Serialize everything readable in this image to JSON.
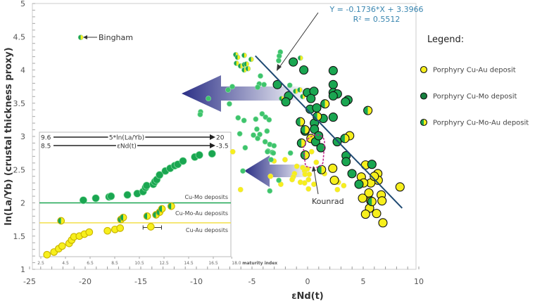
{
  "colors": {
    "cu_au": "#f7ef1c",
    "cu_mo": "#1aa651",
    "cu_mo_dark": "#17803f",
    "small_green": "#3ec46c",
    "line": "#1f4a73",
    "equation": "#3a86b0",
    "kounrad_outline": "#c0288a",
    "arrow": "#2b2f86"
  },
  "chart_data": {
    "type": "scatter",
    "xlabel": "εNd(t)",
    "ylabel": "ln(La/Yb) (crustal thickness proxy)",
    "xlim": [
      -25,
      10
    ],
    "ylim": [
      1,
      5
    ],
    "xticks": [
      -25,
      -20,
      -15,
      -10,
      -5,
      0,
      5,
      10
    ],
    "yticks": [
      1,
      1.5,
      2,
      2.5,
      3,
      3.5,
      4,
      4.5,
      5
    ],
    "grid": false,
    "legend_placement": "right",
    "legend": {
      "title": "Legend:",
      "entries": [
        "Porphyry Cu-Au deposit",
        "Porphyry Cu-Mo deposit",
        "Porphyry Cu-Mo-Au deposit"
      ]
    },
    "regression": {
      "equation": "Y = -0.1736*X + 3.3966",
      "r2": "R² = 0.5512",
      "slope": -0.1736,
      "intercept": 3.3966,
      "xrange": [
        -4.7,
        8.5
      ]
    },
    "annotations": {
      "bingham": "Bingham",
      "kounrad": "Kounrad"
    },
    "series": [
      {
        "name": "Porphyry Cu-Au deposit",
        "type": "cu_au",
        "size": "large",
        "points": [
          [
            3.78,
            3.01
          ],
          [
            0.3,
            2.97
          ],
          [
            2.26,
            2.52
          ],
          [
            2.41,
            2.34
          ],
          [
            5.21,
            2.57
          ],
          [
            4.83,
            2.39
          ],
          [
            6.31,
            2.44
          ],
          [
            6.35,
            2.34
          ],
          [
            5.68,
            2.3
          ],
          [
            5.04,
            2.3
          ],
          [
            6.0,
            2.4
          ],
          [
            8.31,
            2.24
          ],
          [
            5.51,
            2.15
          ],
          [
            4.94,
            2.07
          ],
          [
            6.62,
            2.12
          ],
          [
            6.69,
            2.03
          ],
          [
            5.68,
            2.03
          ],
          [
            5.57,
            1.92
          ],
          [
            5.21,
            1.83
          ],
          [
            6.2,
            1.84
          ],
          [
            6.77,
            1.7
          ]
        ]
      },
      {
        "name": "Porphyry Cu-Mo deposit",
        "type": "cu_mo",
        "size": "large",
        "points": [
          [
            -1.29,
            4.12
          ],
          [
            -0.34,
            4.0
          ],
          [
            2.3,
            3.99
          ],
          [
            -2.72,
            3.78
          ],
          [
            2.3,
            3.78
          ],
          [
            -1.71,
            3.61
          ],
          [
            -1.96,
            3.52
          ],
          [
            -0.02,
            3.66
          ],
          [
            0.57,
            3.68
          ],
          [
            0.3,
            3.57
          ],
          [
            2.3,
            3.66
          ],
          [
            2.68,
            3.64
          ],
          [
            2.3,
            3.61
          ],
          [
            3.63,
            3.55
          ],
          [
            3.4,
            3.52
          ],
          [
            0.23,
            3.41
          ],
          [
            0.82,
            3.43
          ],
          [
            1.41,
            3.27
          ],
          [
            2.3,
            3.29
          ],
          [
            0.61,
            3.2
          ],
          [
            0.61,
            3.11
          ],
          [
            -0.23,
            3.08
          ],
          [
            0.72,
            2.92
          ],
          [
            0.99,
            3.01
          ],
          [
            1.2,
            2.83
          ],
          [
            2.66,
            2.92
          ],
          [
            3.46,
            2.71
          ],
          [
            3.46,
            2.62
          ],
          [
            3.99,
            2.44
          ],
          [
            4.62,
            2.28
          ],
          [
            5.78,
            2.58
          ]
        ]
      },
      {
        "name": "Porphyry Cu-Mo-Au deposit",
        "type": "cu_mo_au",
        "size": "large",
        "points": [
          [
            1.56,
            3.49
          ],
          [
            0.87,
            3.3
          ],
          [
            -0.65,
            3.22
          ],
          [
            -0.23,
            3.1
          ],
          [
            -0.55,
            2.9
          ],
          [
            -0.23,
            2.72
          ],
          [
            3.35,
            2.97
          ],
          [
            1.25,
            2.5
          ],
          [
            5.42,
            3.39
          ],
          [
            5.78,
            2.02
          ]
        ]
      },
      {
        "type": "cu_au",
        "size": "small",
        "points": [
          [
            -6.73,
            2.77
          ],
          [
            -2.03,
            2.65
          ],
          [
            -3.02,
            2.63
          ],
          [
            -0.97,
            2.55
          ],
          [
            -0.44,
            2.53
          ],
          [
            -0.02,
            2.51
          ],
          [
            -0.27,
            2.48
          ],
          [
            0.36,
            2.77
          ],
          [
            0.78,
            2.61
          ],
          [
            -1.18,
            2.44
          ],
          [
            -1.29,
            2.39
          ],
          [
            -0.23,
            2.43
          ],
          [
            0.15,
            2.43
          ],
          [
            -1.39,
            2.35
          ],
          [
            -0.65,
            2.31
          ],
          [
            -0.27,
            2.3
          ],
          [
            0.08,
            2.35
          ],
          [
            0.57,
            2.28
          ],
          [
            0.08,
            2.21
          ],
          [
            -3.34,
            2.4
          ],
          [
            -2.41,
            2.28
          ],
          [
            -6.03,
            2.2
          ],
          [
            1.52,
            2.44
          ],
          [
            2.77,
            2.31
          ],
          [
            2.68,
            2.2
          ],
          [
            3.25,
            2.26
          ]
        ]
      },
      {
        "type": "cu_mo",
        "size": "small",
        "points": [
          [
            -2.45,
            4.27
          ],
          [
            -2.55,
            4.21
          ],
          [
            -2.6,
            4.14
          ],
          [
            -4.24,
            3.91
          ],
          [
            -4.35,
            3.79
          ],
          [
            -3.92,
            3.78
          ],
          [
            -4.49,
            3.74
          ],
          [
            -6.77,
            3.75
          ],
          [
            -7.15,
            3.7
          ],
          [
            -8.92,
            3.57
          ],
          [
            -7.03,
            3.49
          ],
          [
            -9.62,
            3.37
          ],
          [
            -9.66,
            3.33
          ],
          [
            -6.25,
            3.28
          ],
          [
            -5.72,
            3.24
          ],
          [
            -4.66,
            3.26
          ],
          [
            -4.09,
            3.34
          ],
          [
            -3.78,
            3.29
          ],
          [
            -3.46,
            3.25
          ],
          [
            -1.6,
            3.77
          ],
          [
            -4.56,
            3.11
          ],
          [
            -6.1,
            3.04
          ],
          [
            -4.87,
            3.02
          ],
          [
            -4.3,
            3.03
          ],
          [
            -3.65,
            3.08
          ],
          [
            -4.49,
            2.97
          ],
          [
            -3.82,
            2.92
          ],
          [
            -3.4,
            2.88
          ],
          [
            -3.02,
            2.86
          ],
          [
            -3.56,
            2.78
          ],
          [
            -3.18,
            2.76
          ],
          [
            -5.61,
            2.83
          ],
          [
            -1.54,
            2.75
          ],
          [
            -3.61,
            2.77
          ],
          [
            -3.08,
            2.75
          ],
          [
            -3.29,
            2.65
          ],
          [
            -5.82,
            2.48
          ],
          [
            -2.59,
            2.34
          ],
          [
            -3.4,
            2.18
          ]
        ]
      },
      {
        "type": "cu_mo_au",
        "size": "small",
        "points": [
          [
            -20.4,
            4.49
          ],
          [
            -6.46,
            4.23
          ],
          [
            -5.7,
            4.22
          ],
          [
            -6.3,
            4.19
          ],
          [
            -5.08,
            4.16
          ],
          [
            -6.4,
            4.1
          ],
          [
            -6.03,
            4.06
          ],
          [
            -5.68,
            4.08
          ],
          [
            -5.5,
            4.09
          ],
          [
            -5.7,
            4.0
          ],
          [
            -5.36,
            4.02
          ],
          [
            -0.65,
            4.18
          ],
          [
            -1.08,
            3.68
          ],
          [
            -0.7,
            3.7
          ],
          [
            -0.44,
            3.6
          ],
          [
            -2.34,
            3.57
          ]
        ]
      }
    ],
    "inset": {
      "xlabel": "maturity index",
      "xticks": [
        "2.5",
        "4.5",
        "6.5",
        "8.5",
        "10.5",
        "12.5",
        "14.5",
        "16.5",
        "18.0"
      ],
      "xlim": [
        2.5,
        18.0
      ],
      "scale_rows": [
        {
          "from": "9.6",
          "label": "5*ln(La/Yb)",
          "to": "20"
        },
        {
          "from": "8.5",
          "label": "εNd(t)",
          "to": "-3.5"
        }
      ],
      "thresholds": [
        {
          "label": "Cu-Mo deposits",
          "y": 2.0,
          "color": "#1aa651"
        },
        {
          "label": "Cu-Au deposits",
          "y": 1.7,
          "color": "#f2e04a"
        }
      ],
      "middle_label": "Cu-Mo-Au deposits",
      "series": [
        {
          "type": "cu_mo",
          "points": [
            [
              5.95,
              2.04
            ],
            [
              6.96,
              2.07
            ],
            [
              8.04,
              2.09
            ],
            [
              8.2,
              2.1
            ],
            [
              9.53,
              2.12
            ],
            [
              10.33,
              2.14
            ],
            [
              10.8,
              2.17
            ],
            [
              11.0,
              2.23
            ],
            [
              11.09,
              2.26
            ],
            [
              11.63,
              2.28
            ],
            [
              11.76,
              2.32
            ],
            [
              11.91,
              2.35
            ],
            [
              12.14,
              2.42
            ],
            [
              12.61,
              2.48
            ],
            [
              13.0,
              2.52
            ],
            [
              13.37,
              2.56
            ],
            [
              13.62,
              2.58
            ],
            [
              14.04,
              2.63
            ],
            [
              15.0,
              2.69
            ],
            [
              15.37,
              2.72
            ],
            [
              16.4,
              2.74
            ]
          ]
        },
        {
          "type": "cu_mo_au",
          "points": [
            [
              4.14,
              1.73
            ],
            [
              9.0,
              1.75
            ],
            [
              9.19,
              1.78
            ],
            [
              11.13,
              1.8
            ],
            [
              11.85,
              1.82
            ],
            [
              12.14,
              1.86
            ],
            [
              12.33,
              1.91
            ],
            [
              13.09,
              1.95
            ]
          ]
        },
        {
          "type": "cu_au",
          "points": [
            [
              3.0,
              1.22
            ],
            [
              3.57,
              1.26
            ],
            [
              3.95,
              1.31
            ],
            [
              4.23,
              1.35
            ],
            [
              4.8,
              1.39
            ],
            [
              5.0,
              1.44
            ],
            [
              5.19,
              1.49
            ],
            [
              5.63,
              1.5
            ],
            [
              6.04,
              1.53
            ],
            [
              6.43,
              1.56
            ],
            [
              7.91,
              1.58
            ],
            [
              8.52,
              1.6
            ],
            [
              8.94,
              1.62
            ],
            [
              11.43,
              1.64
            ]
          ]
        }
      ],
      "error_bar": {
        "x": 11.43,
        "y": 1.64,
        "xmin": 10.8,
        "xmax": 12.3
      }
    }
  }
}
